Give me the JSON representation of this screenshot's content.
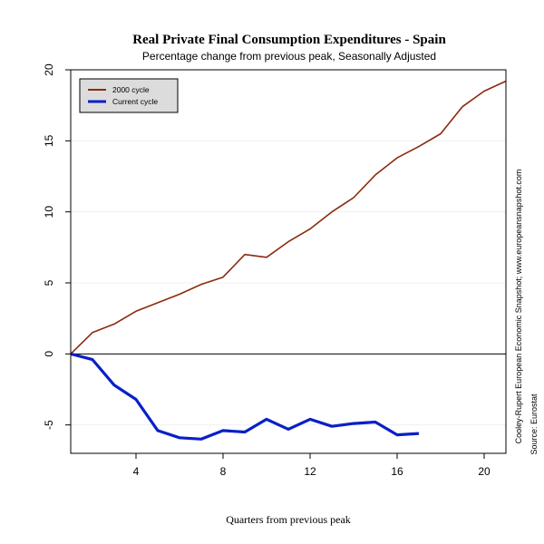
{
  "chart_data": {
    "type": "line",
    "title": "Real Private Final Consumption Expenditures - Spain",
    "subtitle": "Percentage change from previous peak, Seasonally Adjusted",
    "xlabel": "Quarters from previous peak",
    "ylabel": "",
    "xlim": [
      1,
      21
    ],
    "ylim": [
      -7,
      20
    ],
    "x_ticks": [
      4,
      8,
      12,
      16,
      20
    ],
    "y_ticks": [
      -5,
      0,
      5,
      10,
      15,
      20
    ],
    "grid": true,
    "legend_position": "top-left",
    "series": [
      {
        "name": "2000 cycle",
        "color": "#8B2A0E",
        "x": [
          1,
          2,
          3,
          4,
          5,
          6,
          7,
          8,
          9,
          10,
          11,
          12,
          13,
          14,
          15,
          16,
          17,
          18,
          19,
          20,
          21
        ],
        "y": [
          0,
          1.5,
          2.1,
          3.0,
          3.6,
          4.2,
          4.9,
          5.4,
          7.0,
          6.8,
          7.9,
          8.8,
          10.0,
          11.0,
          12.6,
          13.8,
          14.6,
          15.5,
          17.4,
          18.5,
          19.2
        ]
      },
      {
        "name": "Current cycle",
        "color": "#0A1FC8",
        "x": [
          1,
          2,
          3,
          4,
          5,
          6,
          7,
          8,
          9,
          10,
          11,
          12,
          13,
          14,
          15,
          16,
          17
        ],
        "y": [
          0,
          -0.4,
          -2.2,
          -3.2,
          -5.4,
          -5.9,
          -6.0,
          -5.4,
          -5.5,
          -4.6,
          -5.3,
          -4.6,
          -5.1,
          -4.9,
          -4.8,
          -5.7,
          -5.6
        ]
      }
    ],
    "side_notes": [
      "Cooley-Rupert European Economic Snapshot; www.europeansnapshot.com",
      "Source: Eurostat"
    ]
  }
}
